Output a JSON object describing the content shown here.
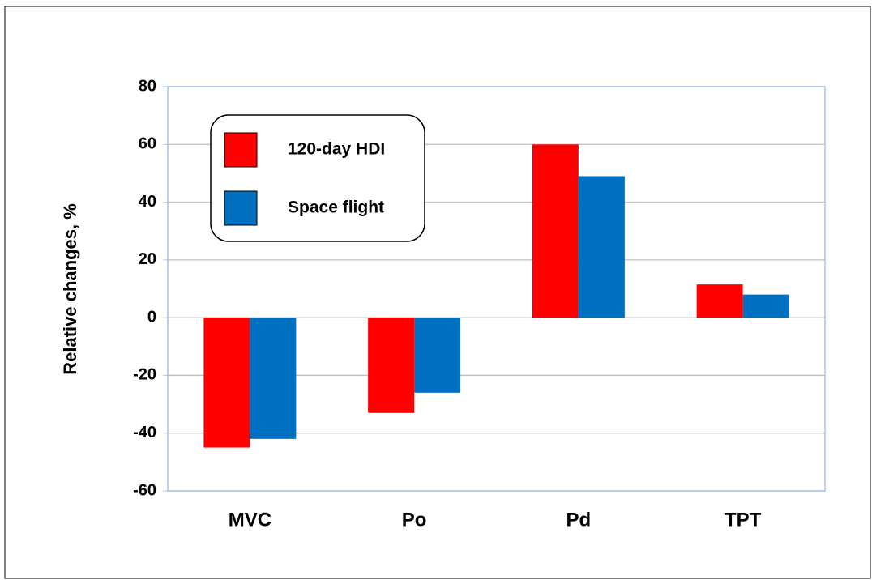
{
  "chart_data": {
    "type": "bar",
    "y_label": "Relative changes, %",
    "categories": [
      "MVC",
      "Po",
      "Pd",
      "TPT"
    ],
    "series": [
      {
        "name": "120-day HDI",
        "color": "#ff0000",
        "values": [
          -45,
          -33,
          60,
          11.5
        ]
      },
      {
        "name": "Space flight",
        "color": "#0070c0",
        "values": [
          -42,
          -26,
          49,
          8
        ]
      }
    ],
    "ylim": [
      -60,
      80
    ],
    "yticks": [
      -60,
      -40,
      -20,
      0,
      20,
      40,
      60,
      80
    ],
    "grid": true
  }
}
